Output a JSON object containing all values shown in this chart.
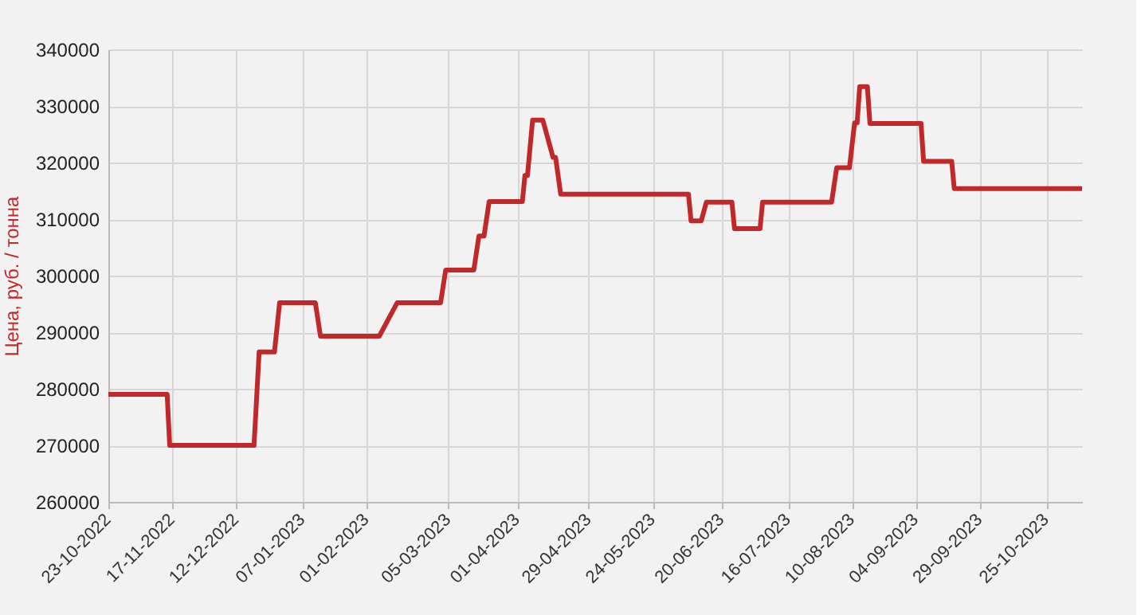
{
  "chart_data": {
    "type": "line",
    "ylabel": "Цена, руб. / тонна",
    "x": [
      "2022-10-23",
      "2022-11-15",
      "2022-11-16",
      "2022-12-19",
      "2022-12-21",
      "2022-12-27",
      "2022-12-29",
      "2023-01-12",
      "2023-01-14",
      "2023-02-06",
      "2023-02-13",
      "2023-03-02",
      "2023-03-04",
      "2023-03-15",
      "2023-03-17",
      "2023-03-19",
      "2023-03-21",
      "2023-04-03",
      "2023-04-04",
      "2023-04-05",
      "2023-04-07",
      "2023-04-11",
      "2023-04-15",
      "2023-04-16",
      "2023-04-18",
      "2023-06-07",
      "2023-06-08",
      "2023-06-12",
      "2023-06-14",
      "2023-06-24",
      "2023-06-25",
      "2023-07-05",
      "2023-07-06",
      "2023-08-02",
      "2023-08-04",
      "2023-08-09",
      "2023-08-11",
      "2023-08-12",
      "2023-08-13",
      "2023-08-16",
      "2023-08-17",
      "2023-09-06",
      "2023-09-07",
      "2023-09-18",
      "2023-09-19",
      "2023-11-08"
    ],
    "series": [
      {
        "color": "#c0282a",
        "values": [
          279000,
          279000,
          270000,
          270000,
          286500,
          286500,
          295200,
          295200,
          289300,
          289300,
          295200,
          295200,
          301000,
          301000,
          307000,
          307000,
          313100,
          313100,
          317700,
          317700,
          327500,
          327500,
          320900,
          320900,
          314400,
          314400,
          309700,
          309700,
          313000,
          313000,
          308300,
          308300,
          313000,
          313000,
          319100,
          319100,
          327000,
          327000,
          333400,
          333400,
          326900,
          326900,
          320200,
          320200,
          315400,
          315400
        ]
      }
    ],
    "xlim": [
      "2022-10-23",
      "2023-11-08"
    ],
    "xticks": [
      {
        "value": "2022-10-23",
        "label": "23-10-2022"
      },
      {
        "value": "2022-11-17",
        "label": "17-11-2022"
      },
      {
        "value": "2022-12-12",
        "label": "12-12-2022"
      },
      {
        "value": "2023-01-07",
        "label": "07-01-2023"
      },
      {
        "value": "2023-02-01",
        "label": "01-02-2023"
      },
      {
        "value": "2023-03-05",
        "label": "05-03-2023"
      },
      {
        "value": "2023-04-01",
        "label": "01-04-2023"
      },
      {
        "value": "2023-04-29",
        "label": "29-04-2023"
      },
      {
        "value": "2023-05-24",
        "label": "24-05-2023"
      },
      {
        "value": "2023-06-20",
        "label": "20-06-2023"
      },
      {
        "value": "2023-07-16",
        "label": "16-07-2023"
      },
      {
        "value": "2023-08-10",
        "label": "10-08-2023"
      },
      {
        "value": "2023-09-04",
        "label": "04-09-2023"
      },
      {
        "value": "2023-09-29",
        "label": "29-09-2023"
      },
      {
        "value": "2023-10-25",
        "label": "25-10-2023"
      }
    ],
    "ylim": [
      260000,
      340000
    ],
    "yticks": [
      260000,
      270000,
      280000,
      290000,
      300000,
      310000,
      320000,
      330000,
      340000
    ],
    "grid": true,
    "legend": false,
    "marker": "none",
    "line_style": "solid"
  }
}
